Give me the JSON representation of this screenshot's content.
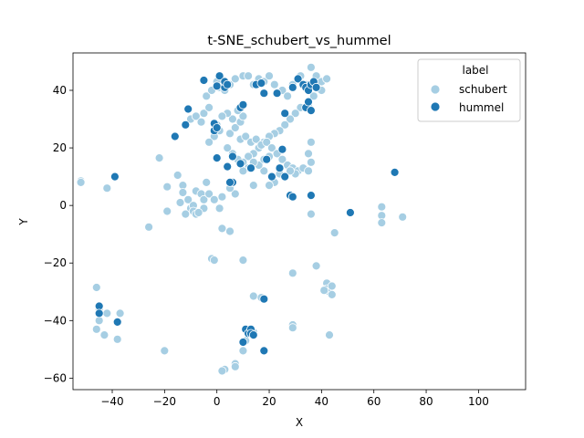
{
  "chart_data": {
    "type": "scatter",
    "title": "t-SNE_schubert_vs_hummel",
    "xlabel": "X",
    "ylabel": "Y",
    "xlim": [
      -55,
      118
    ],
    "ylim": [
      -64,
      53
    ],
    "xticks": [
      -40,
      -20,
      0,
      20,
      40,
      60,
      80,
      100
    ],
    "yticks": [
      -60,
      -40,
      -20,
      0,
      20,
      40
    ],
    "grid": false,
    "legend": {
      "title": "label",
      "placement": "top-right"
    },
    "series": [
      {
        "name": "schubert",
        "color": "#a6cee3",
        "points": [
          [
            -52,
            8.5
          ],
          [
            -52,
            8
          ],
          [
            -42,
            6
          ],
          [
            -22,
            16.5
          ],
          [
            -19,
            6.5
          ],
          [
            -19,
            -2
          ],
          [
            -26,
            -7.5
          ],
          [
            -15,
            10.5
          ],
          [
            -13,
            7
          ],
          [
            -13,
            4.5
          ],
          [
            -11,
            2
          ],
          [
            -10,
            -1
          ],
          [
            -14,
            1
          ],
          [
            -12,
            -3
          ],
          [
            -9,
            0
          ],
          [
            -9,
            -2
          ],
          [
            -8,
            -3
          ],
          [
            -8,
            5
          ],
          [
            -6,
            4
          ],
          [
            -5,
            2
          ],
          [
            -5,
            -1
          ],
          [
            -7,
            -2.5
          ],
          [
            -4,
            8
          ],
          [
            -3,
            4
          ],
          [
            -1,
            2
          ],
          [
            1,
            -1
          ],
          [
            2,
            3
          ],
          [
            2,
            -8
          ],
          [
            5,
            -9
          ],
          [
            7,
            4
          ],
          [
            5,
            6
          ],
          [
            -10,
            30
          ],
          [
            -8,
            31
          ],
          [
            -6,
            29
          ],
          [
            -5,
            32
          ],
          [
            -3,
            34
          ],
          [
            -4,
            38
          ],
          [
            -2,
            40
          ],
          [
            0,
            43
          ],
          [
            1,
            41
          ],
          [
            3,
            40
          ],
          [
            5,
            42
          ],
          [
            7,
            44
          ],
          [
            10,
            45
          ],
          [
            12,
            45
          ],
          [
            14,
            42
          ],
          [
            16,
            44
          ],
          [
            18,
            43
          ],
          [
            20,
            45
          ],
          [
            22,
            42
          ],
          [
            25,
            40
          ],
          [
            27,
            38
          ],
          [
            29,
            42
          ],
          [
            32,
            45
          ],
          [
            34,
            42
          ],
          [
            36,
            48
          ],
          [
            38,
            45
          ],
          [
            40,
            43
          ],
          [
            42,
            44
          ],
          [
            40,
            40
          ],
          [
            37,
            38
          ],
          [
            35,
            35
          ],
          [
            32,
            34
          ],
          [
            30,
            32
          ],
          [
            28,
            30
          ],
          [
            26,
            28
          ],
          [
            24,
            26
          ],
          [
            22,
            25
          ],
          [
            20,
            24
          ],
          [
            18,
            22
          ],
          [
            16,
            20
          ],
          [
            14,
            18
          ],
          [
            12,
            17
          ],
          [
            10,
            15
          ],
          [
            8,
            16
          ],
          [
            6,
            18
          ],
          [
            4,
            20
          ],
          [
            5,
            25
          ],
          [
            7,
            27
          ],
          [
            9,
            29
          ],
          [
            10,
            31
          ],
          [
            8,
            33
          ],
          [
            6,
            30
          ],
          [
            4,
            32
          ],
          [
            2,
            31
          ],
          [
            0,
            28
          ],
          [
            1,
            26
          ],
          [
            -1,
            24
          ],
          [
            -3,
            22
          ],
          [
            9,
            23
          ],
          [
            11,
            24
          ],
          [
            13,
            22
          ],
          [
            15,
            23
          ],
          [
            17,
            21
          ],
          [
            19,
            22
          ],
          [
            21,
            20
          ],
          [
            23,
            18
          ],
          [
            25,
            16
          ],
          [
            27,
            14
          ],
          [
            29,
            13
          ],
          [
            31,
            12
          ],
          [
            33,
            13
          ],
          [
            35,
            12
          ],
          [
            36,
            15
          ],
          [
            35,
            18
          ],
          [
            36,
            22
          ],
          [
            30,
            11
          ],
          [
            28,
            12
          ],
          [
            26,
            10
          ],
          [
            24,
            11
          ],
          [
            22,
            8
          ],
          [
            20,
            7
          ],
          [
            18,
            12
          ],
          [
            16,
            14
          ],
          [
            14,
            15
          ],
          [
            12,
            13
          ],
          [
            10,
            12
          ],
          [
            14,
            7
          ],
          [
            20,
            17
          ],
          [
            18,
            16
          ],
          [
            36,
            -3
          ],
          [
            45,
            -9.5
          ],
          [
            38,
            -21
          ],
          [
            29,
            -23.5
          ],
          [
            42,
            -27
          ],
          [
            42,
            -29
          ],
          [
            43,
            -30
          ],
          [
            41,
            -29.5
          ],
          [
            44,
            -28
          ],
          [
            44,
            -31
          ],
          [
            63,
            -0.5
          ],
          [
            63,
            -3.5
          ],
          [
            63,
            -6
          ],
          [
            71,
            -4
          ],
          [
            -46,
            -28.5
          ],
          [
            -45,
            -36
          ],
          [
            -45,
            -40
          ],
          [
            -46,
            -43
          ],
          [
            -43,
            -45
          ],
          [
            -42,
            -37.5
          ],
          [
            -37,
            -37.5
          ],
          [
            -38,
            -46.5
          ],
          [
            -20,
            -50.5
          ],
          [
            -2,
            -18.5
          ],
          [
            -1,
            -19
          ],
          [
            10,
            -19
          ],
          [
            14,
            -31.5
          ],
          [
            17,
            -32
          ],
          [
            29,
            -41.5
          ],
          [
            29,
            -42.5
          ],
          [
            43,
            -45
          ],
          [
            3,
            -57
          ],
          [
            2,
            -57.5
          ],
          [
            7,
            -55
          ],
          [
            7,
            -56
          ],
          [
            10,
            -50.5
          ],
          [
            11,
            -47
          ],
          [
            14,
            -44
          ]
        ]
      },
      {
        "name": "hummel",
        "color": "#1f78b4",
        "points": [
          [
            -39,
            10
          ],
          [
            -16,
            24
          ],
          [
            -12,
            28
          ],
          [
            -11,
            33.5
          ],
          [
            -5,
            43.5
          ],
          [
            -1,
            26
          ],
          [
            -1,
            28.5
          ],
          [
            0,
            41.5
          ],
          [
            1,
            45
          ],
          [
            3,
            41
          ],
          [
            3,
            43
          ],
          [
            4,
            42
          ],
          [
            6,
            17
          ],
          [
            9,
            34
          ],
          [
            10,
            35
          ],
          [
            15,
            42
          ],
          [
            17,
            42.5
          ],
          [
            18,
            39
          ],
          [
            23,
            39
          ],
          [
            26,
            32
          ],
          [
            29,
            41
          ],
          [
            31,
            44
          ],
          [
            33,
            42
          ],
          [
            34,
            41
          ],
          [
            35,
            40
          ],
          [
            36,
            42
          ],
          [
            37,
            43
          ],
          [
            38,
            41
          ],
          [
            34,
            34
          ],
          [
            35,
            36
          ],
          [
            36,
            33
          ],
          [
            6,
            8
          ],
          [
            9,
            14.5
          ],
          [
            13,
            13
          ],
          [
            19,
            16
          ],
          [
            21,
            10
          ],
          [
            25,
            19.5
          ],
          [
            24,
            13
          ],
          [
            26,
            10
          ],
          [
            28,
            3.5
          ],
          [
            29,
            3
          ],
          [
            0,
            16.5
          ],
          [
            0,
            27
          ],
          [
            4,
            13.5
          ],
          [
            5,
            8
          ],
          [
            36,
            3.5
          ],
          [
            51,
            -2.5
          ],
          [
            68,
            11.5
          ],
          [
            -45,
            -35
          ],
          [
            -45,
            -37.5
          ],
          [
            -38,
            -40.5
          ],
          [
            11,
            -43
          ],
          [
            12,
            -44.5
          ],
          [
            13,
            -43
          ],
          [
            13,
            -44.5
          ],
          [
            10,
            -47.5
          ],
          [
            18,
            -32.5
          ],
          [
            18,
            -50.5
          ],
          [
            14,
            -45
          ]
        ]
      }
    ]
  }
}
